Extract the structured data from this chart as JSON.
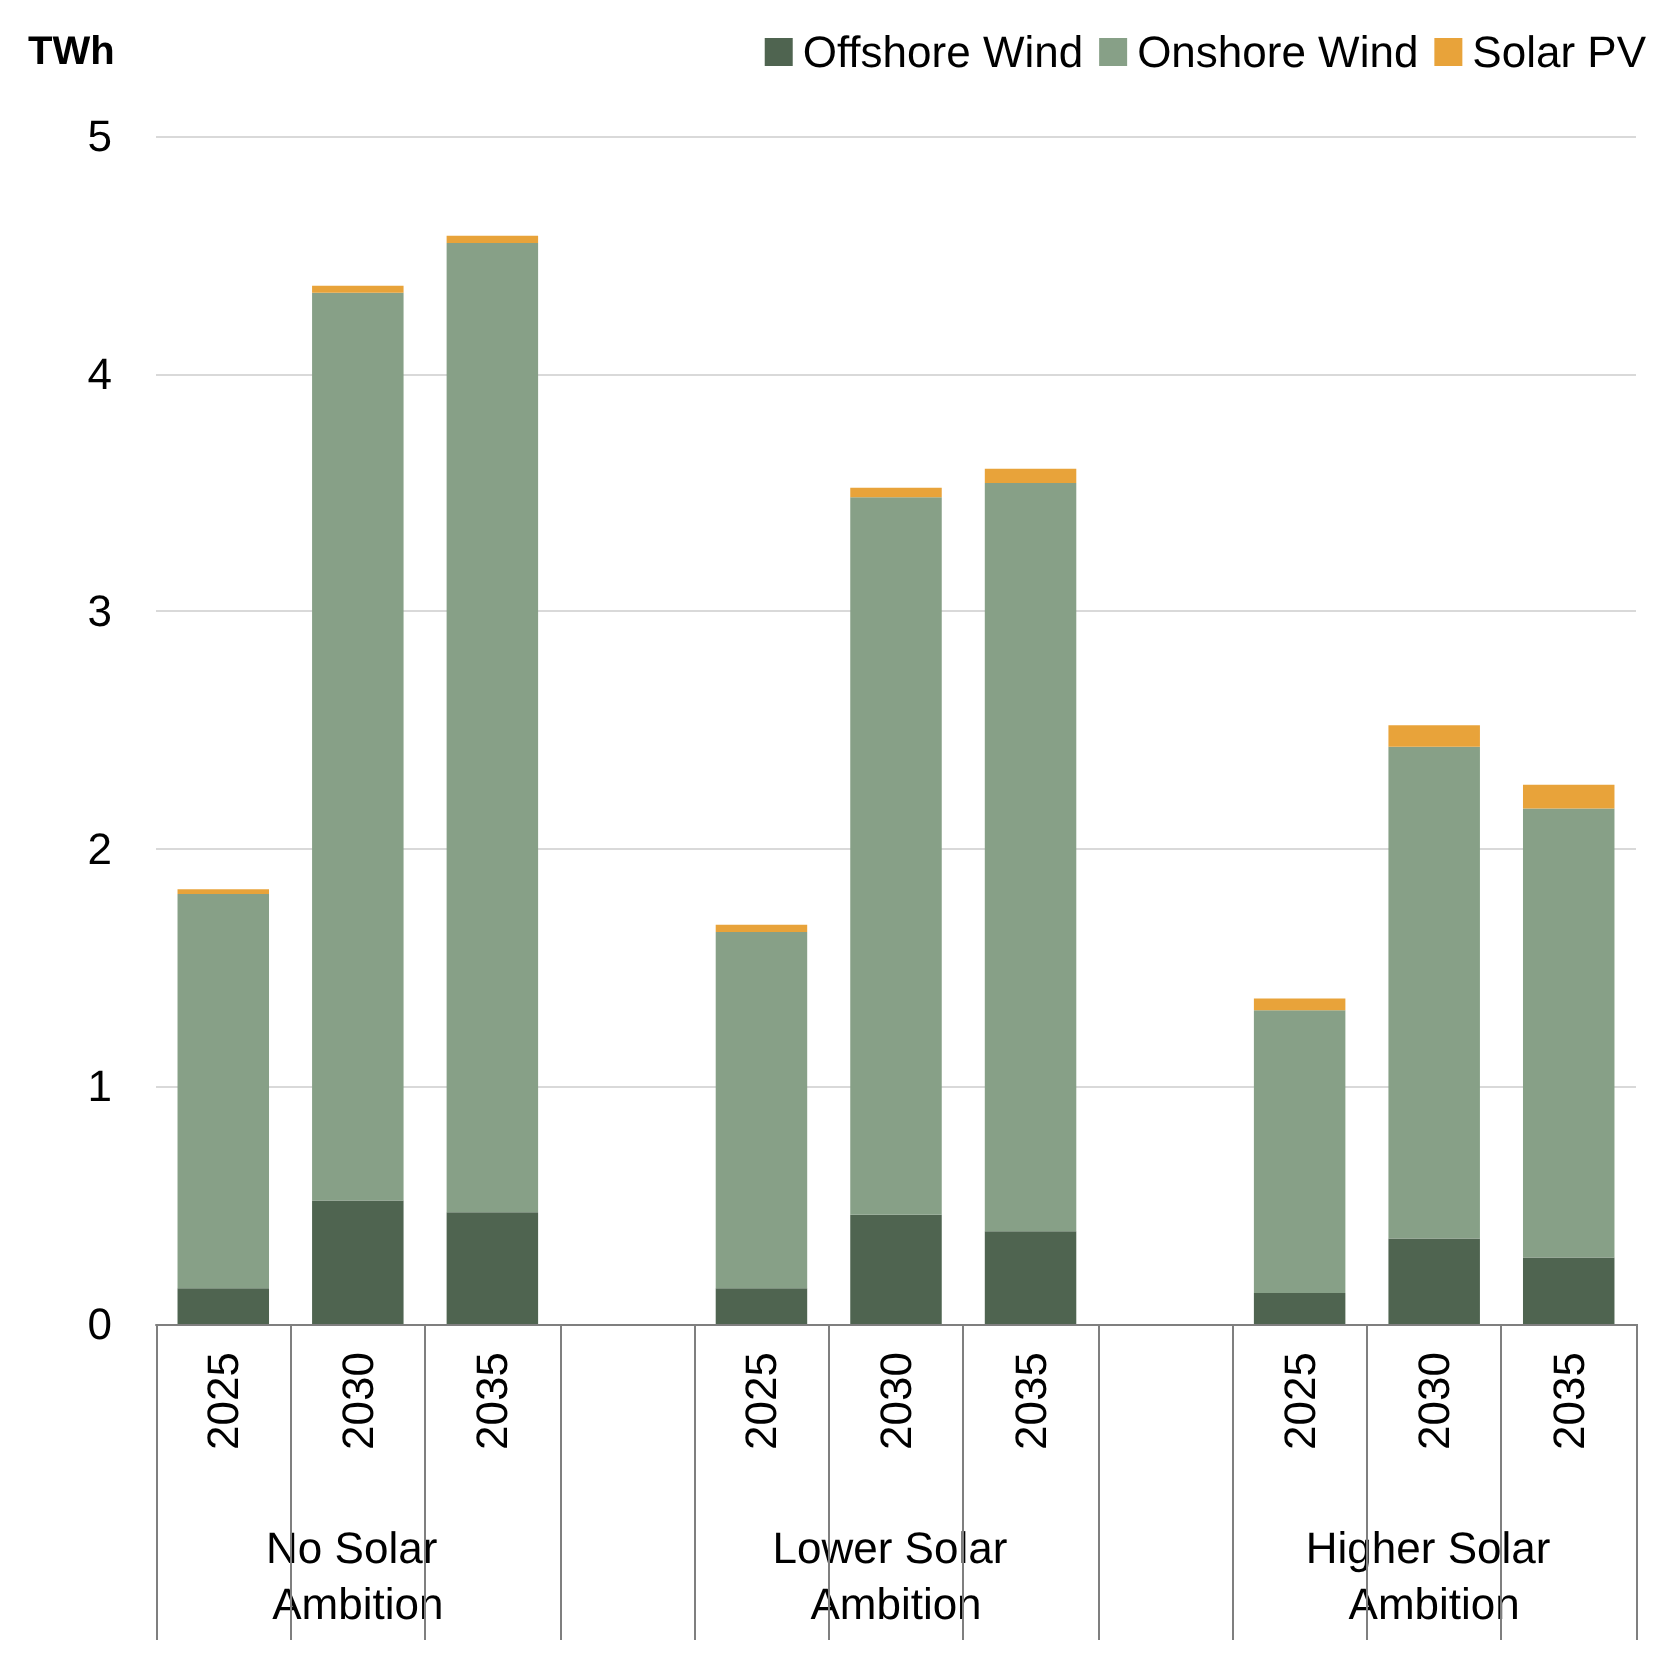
{
  "chart_data": {
    "type": "bar",
    "stacked": true,
    "ylabel": "TWh",
    "categories": [
      "2025",
      "2030",
      "2035",
      null,
      "2025",
      "2030",
      "2035",
      null,
      "2025",
      "2030",
      "2035"
    ],
    "series": [
      {
        "name": "Offshore Wind",
        "color": "#4f6450",
        "values": [
          0.15,
          0.52,
          0.47,
          null,
          0.15,
          0.46,
          0.39,
          null,
          0.13,
          0.36,
          0.28
        ]
      },
      {
        "name": "Onshore Wind",
        "color": "#87a087",
        "values": [
          1.66,
          3.82,
          4.08,
          null,
          1.5,
          3.02,
          3.15,
          null,
          1.19,
          2.07,
          1.89
        ]
      },
      {
        "name": "Solar PV",
        "color": "#e8a33a",
        "values": [
          0.02,
          0.03,
          0.03,
          null,
          0.03,
          0.04,
          0.06,
          null,
          0.05,
          0.09,
          0.1
        ]
      }
    ],
    "ylim": [
      0,
      5
    ],
    "yticks": [
      0,
      1,
      2,
      3,
      4,
      5
    ],
    "grid": "y",
    "legend": "top right",
    "annotations": [
      "No Solar Ambition",
      "Lower Solar Ambition",
      "Higher Solar Ambition"
    ]
  }
}
